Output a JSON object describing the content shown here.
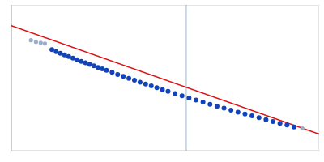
{
  "chart_data": {
    "type": "scatter",
    "xlim": [
      -0.05,
      1.05
    ],
    "ylim": [
      0.2,
      0.9
    ],
    "tick_labels": false,
    "grid": false,
    "series": [
      {
        "type": "line",
        "color": "#b8d0e8",
        "x": [
          0.575,
          0.575
        ],
        "values": [
          0.2,
          0.9
        ]
      },
      {
        "type": "line",
        "color": "#dd1111",
        "x": [
          -0.05,
          1.05
        ],
        "values": [
          0.8,
          0.28
        ]
      },
      {
        "type": "scatter",
        "marker": "circle",
        "color": "#99aec8",
        "x": [
          0.02,
          0.038,
          0.055,
          0.07
        ],
        "values": [
          0.73,
          0.722,
          0.718,
          0.714
        ]
      },
      {
        "type": "scatter",
        "marker": "circle",
        "color": "#99aec8",
        "x": [
          0.99
        ],
        "values": [
          0.307
        ]
      },
      {
        "type": "scatter",
        "marker": "circle",
        "color": "#1144bb",
        "x": [
          0.095,
          0.11,
          0.125,
          0.14,
          0.155,
          0.17,
          0.185,
          0.2,
          0.215,
          0.23,
          0.245,
          0.26,
          0.275,
          0.29,
          0.31,
          0.33,
          0.35,
          0.37,
          0.39,
          0.41,
          0.43,
          0.45,
          0.47,
          0.49,
          0.51,
          0.535,
          0.56,
          0.585,
          0.61,
          0.635,
          0.66,
          0.685,
          0.71,
          0.735,
          0.76,
          0.785,
          0.81,
          0.835,
          0.86,
          0.885,
          0.91,
          0.935,
          0.96
        ],
        "values": [
          0.685,
          0.675,
          0.668,
          0.66,
          0.652,
          0.644,
          0.637,
          0.629,
          0.622,
          0.614,
          0.607,
          0.6,
          0.593,
          0.586,
          0.576,
          0.566,
          0.557,
          0.547,
          0.538,
          0.529,
          0.52,
          0.511,
          0.502,
          0.493,
          0.485,
          0.474,
          0.463,
          0.453,
          0.443,
          0.433,
          0.423,
          0.413,
          0.404,
          0.394,
          0.385,
          0.376,
          0.367,
          0.358,
          0.349,
          0.34,
          0.331,
          0.323,
          0.314
        ]
      }
    ]
  }
}
